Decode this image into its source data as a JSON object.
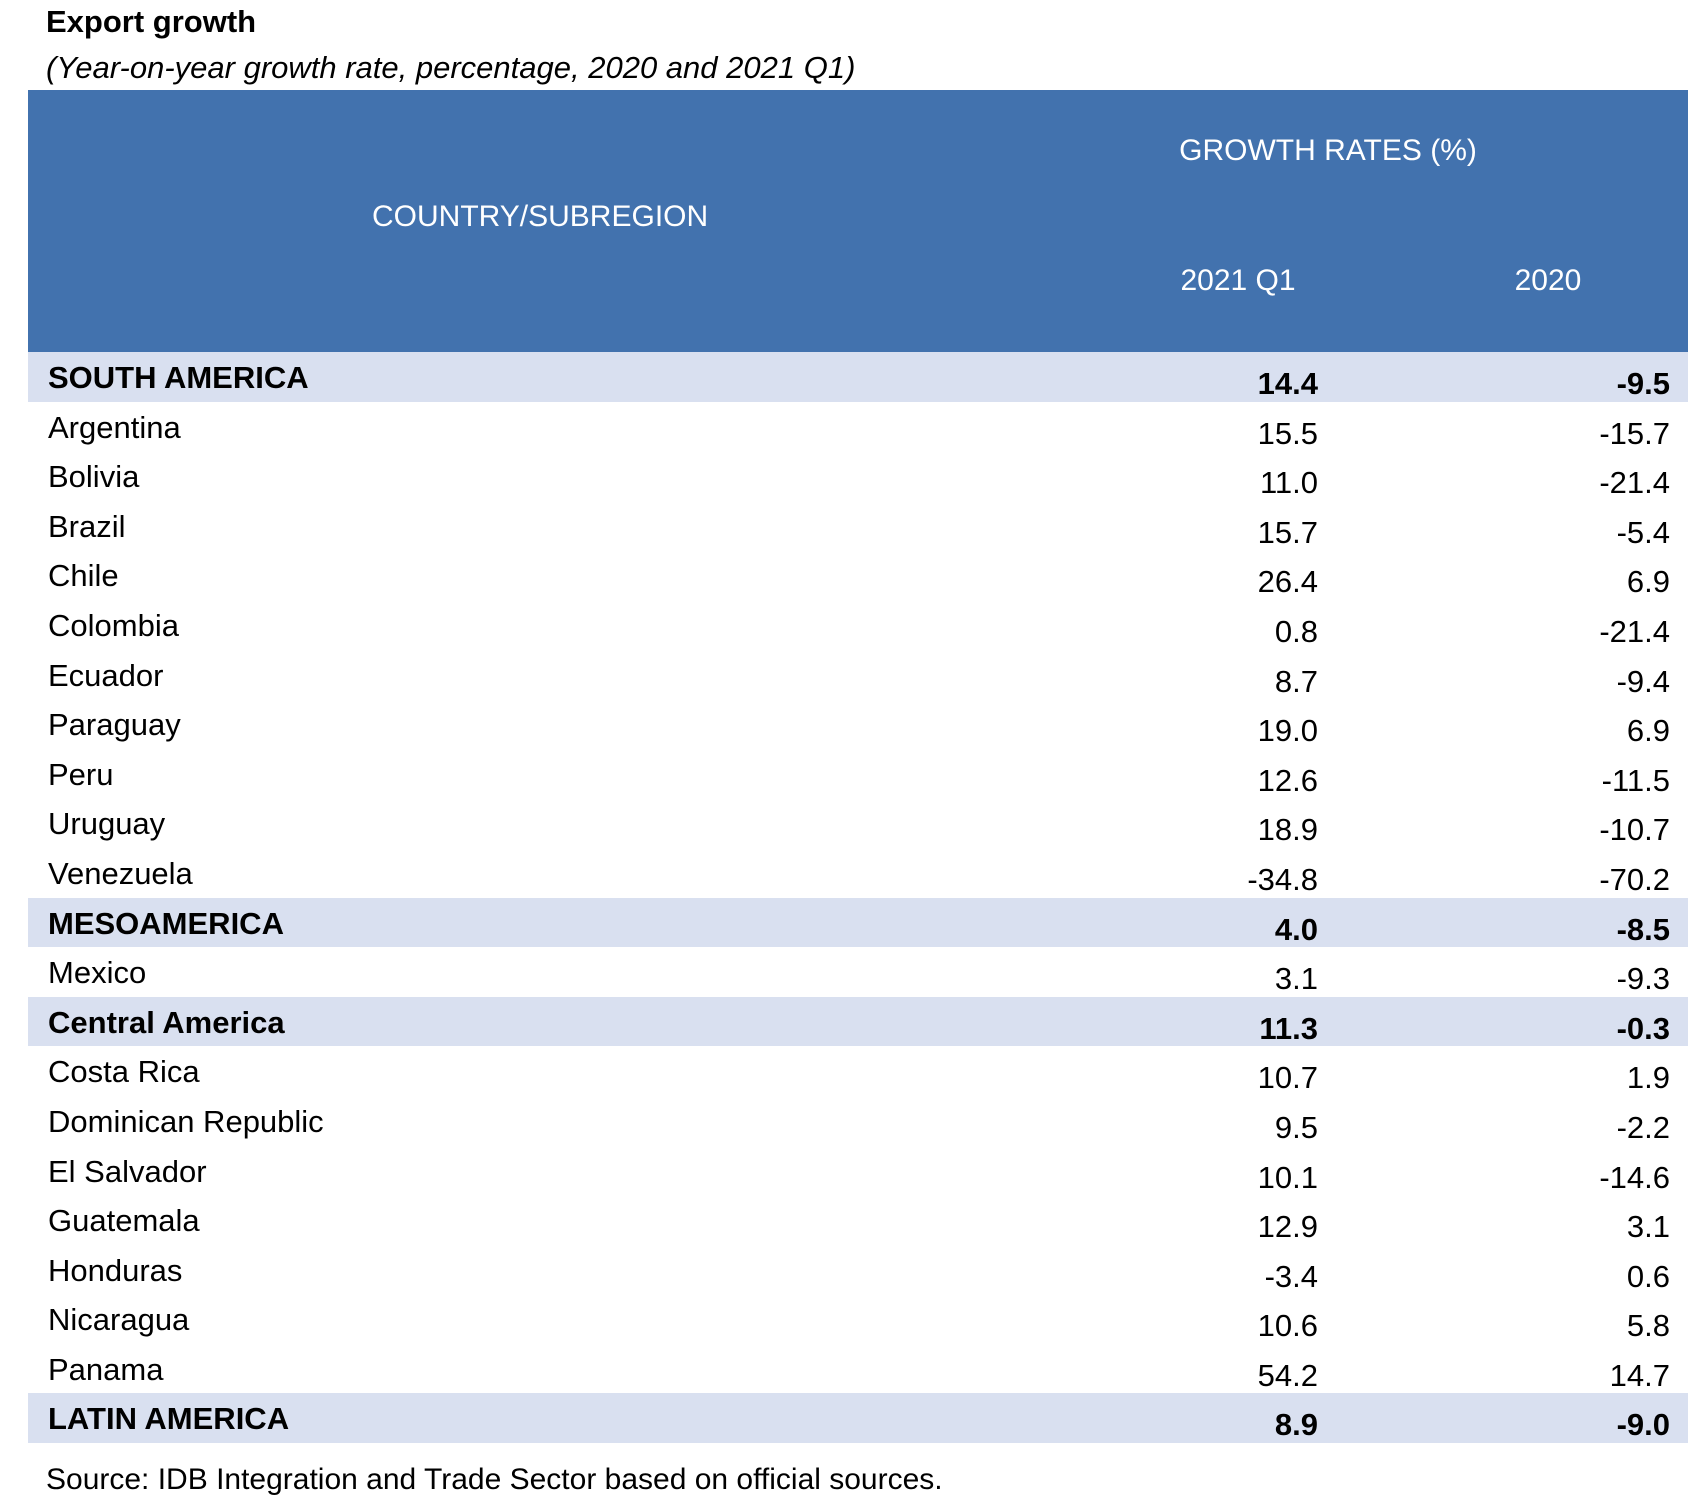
{
  "title": "Export growth",
  "subtitle": "(Year-on-year growth rate, percentage, 2020 and 2021 Q1)",
  "header": {
    "country_col": "COUNTRY/SUBREGION",
    "group": "GROWTH RATES (%)",
    "col1": "2021 Q1",
    "col2": "2020"
  },
  "colors": {
    "header_bg": "#4272AE",
    "subtotal_bg": "#D9E0F0"
  },
  "rows": [
    {
      "name": "SOUTH AMERICA",
      "q1_2021": "14.4",
      "y2020": "-9.5",
      "subtotal": true
    },
    {
      "name": "Argentina",
      "q1_2021": "15.5",
      "y2020": "-15.7",
      "subtotal": false
    },
    {
      "name": "Bolivia",
      "q1_2021": "11.0",
      "y2020": "-21.4",
      "subtotal": false
    },
    {
      "name": "Brazil",
      "q1_2021": "15.7",
      "y2020": "-5.4",
      "subtotal": false
    },
    {
      "name": "Chile",
      "q1_2021": "26.4",
      "y2020": "6.9",
      "subtotal": false
    },
    {
      "name": "Colombia",
      "q1_2021": "0.8",
      "y2020": "-21.4",
      "subtotal": false
    },
    {
      "name": "Ecuador",
      "q1_2021": "8.7",
      "y2020": "-9.4",
      "subtotal": false
    },
    {
      "name": "Paraguay",
      "q1_2021": "19.0",
      "y2020": "6.9",
      "subtotal": false
    },
    {
      "name": "Peru",
      "q1_2021": "12.6",
      "y2020": "-11.5",
      "subtotal": false
    },
    {
      "name": "Uruguay",
      "q1_2021": "18.9",
      "y2020": "-10.7",
      "subtotal": false
    },
    {
      "name": "Venezuela",
      "q1_2021": "-34.8",
      "y2020": "-70.2",
      "subtotal": false
    },
    {
      "name": "MESOAMERICA",
      "q1_2021": "4.0",
      "y2020": "-8.5",
      "subtotal": true
    },
    {
      "name": "Mexico",
      "q1_2021": "3.1",
      "y2020": "-9.3",
      "subtotal": false
    },
    {
      "name": "Central America",
      "q1_2021": "11.3",
      "y2020": "-0.3",
      "subtotal": true
    },
    {
      "name": "Costa Rica",
      "q1_2021": "10.7",
      "y2020": "1.9",
      "subtotal": false
    },
    {
      "name": "Dominican Republic",
      "q1_2021": "9.5",
      "y2020": "-2.2",
      "subtotal": false
    },
    {
      "name": "El Salvador",
      "q1_2021": "10.1",
      "y2020": "-14.6",
      "subtotal": false
    },
    {
      "name": "Guatemala",
      "q1_2021": "12.9",
      "y2020": "3.1",
      "subtotal": false
    },
    {
      "name": "Honduras",
      "q1_2021": "-3.4",
      "y2020": "0.6",
      "subtotal": false
    },
    {
      "name": "Nicaragua",
      "q1_2021": "10.6",
      "y2020": "5.8",
      "subtotal": false
    },
    {
      "name": "Panama",
      "q1_2021": "54.2",
      "y2020": "14.7",
      "subtotal": false
    },
    {
      "name": "LATIN AMERICA",
      "q1_2021": "8.9",
      "y2020": "-9.0",
      "subtotal": true
    }
  ],
  "source": "Source: IDB Integration and Trade Sector based on official sources."
}
